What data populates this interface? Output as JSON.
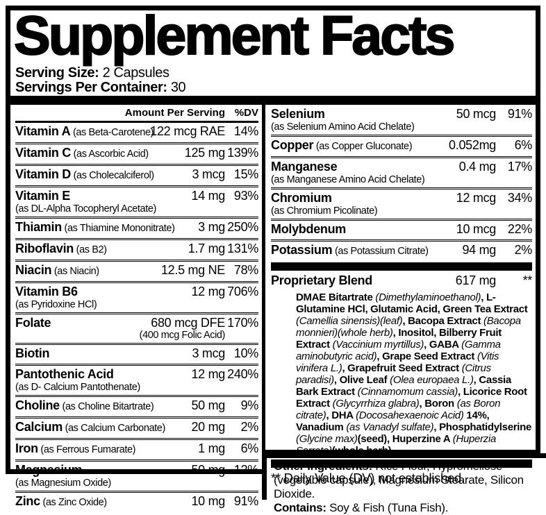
{
  "colors": {
    "ink": "#000000",
    "paper": "#ffffff"
  },
  "title": "Supplement Facts",
  "serving": {
    "size_label": "Serving Size:",
    "size_value": " 2 Capsules",
    "count_label": "Servings Per Container:",
    "count_value": " 30"
  },
  "table": {
    "header": {
      "amount": "Amount Per Serving",
      "dv": "%DV"
    },
    "left_rows": [
      {
        "name": "Vitamin A",
        "form": "(as Beta-Carotene)",
        "amount": "122 mcg RAE",
        "dv": "14%"
      },
      {
        "name": "Vitamin C",
        "form": "(as Ascorbic Acid)",
        "amount": "125 mg",
        "dv": "139%"
      },
      {
        "name": "Vitamin D",
        "form": "(as Cholecalciferol)",
        "amount": "3 mcg",
        "dv": "15%"
      },
      {
        "name": "Vitamin E",
        "sub": "(as DL-Alpha Tocopheryl Acetate)",
        "amount": "14 mg",
        "dv": "93%"
      },
      {
        "name": "Thiamin",
        "form": "(as Thiamine Mononitrate)",
        "amount": "3 mg",
        "dv": "250%"
      },
      {
        "name": "Riboflavin",
        "form": "(as B2)",
        "amount": "1.7 mg",
        "dv": "131%"
      },
      {
        "name": "Niacin",
        "form": "(as Niacin)",
        "amount": "12.5 mg NE",
        "dv": "78%"
      },
      {
        "name": "Vitamin B6",
        "sub": "(as Pyridoxine HCl)",
        "amount": "12 mg",
        "dv": "706%"
      },
      {
        "name": "Folate",
        "amount": "680 mcg DFE",
        "amount_sub": "(400 mcg Folic Acid)",
        "dv": "170%"
      },
      {
        "name": "Biotin",
        "amount": "3 mcg",
        "dv": "10%"
      },
      {
        "name": "Pantothenic Acid",
        "sub": "(as D- Calcium Pantothenate)",
        "amount": "12 mg",
        "dv": "240%"
      },
      {
        "name": "Choline",
        "form": "(as Choline Bitartrate)",
        "amount": "50 mg",
        "dv": "9%"
      },
      {
        "name": "Calcium",
        "form": "(as Calcium Carbonate)",
        "amount": "20 mg",
        "dv": "2%"
      },
      {
        "name": "Iron",
        "form": "(as Ferrous Fumarate)",
        "amount": "1 mg",
        "dv": "6%"
      },
      {
        "name": "Magnesium",
        "sub": "(as Magnesium Oxide)",
        "amount": "50 mg",
        "dv": "12%"
      },
      {
        "name": "Zinc",
        "form": "(as Zinc Oxide)",
        "amount": "10 mg",
        "dv": "91%"
      }
    ],
    "right_rows": [
      {
        "name": "Selenium",
        "sub": "(as Selenium Amino Acid Chelate)",
        "amount": "50 mcg",
        "dv": "91%"
      },
      {
        "name": "Copper",
        "form": "(as Copper Gluconate)",
        "amount": "0.052mg",
        "dv": "6%"
      },
      {
        "name": "Manganese",
        "sub": "(as Manganese Amino Acid Chelate)",
        "amount": "0.4 mg",
        "dv": "17%"
      },
      {
        "name": "Chromium",
        "sub": "(as Chromium Picolinate)",
        "amount": "12 mcg",
        "dv": "34%"
      },
      {
        "name": "Molybdenum",
        "amount": "10 mcg",
        "dv": "22%"
      },
      {
        "name": "Potassium",
        "form": "(as Potassium Citrate)",
        "amount": "94 mg",
        "dv": "2%"
      }
    ],
    "proprietary": {
      "name": "Proprietary Blend",
      "amount": "617 mg",
      "dv": "**",
      "ingredients": [
        {
          "s": "b",
          "t": "DMAE Bitartrate "
        },
        {
          "s": "i",
          "t": "(Dimethylaminoethanol)"
        },
        {
          "s": "b",
          "t": ", L-Glutamine HCl, Glutamic Acid, Green Tea Extract "
        },
        {
          "s": "i",
          "t": "(Camellia sinensis)(leaf)"
        },
        {
          "s": "b",
          "t": ", Bacopa Extract "
        },
        {
          "s": "i",
          "t": "(Bacopa monnieri)(whole herb)"
        },
        {
          "s": "b",
          "t": ", Inositol, Bilberry Fruit Extract "
        },
        {
          "s": "i",
          "t": "(Vaccinium myrtillus)"
        },
        {
          "s": "b",
          "t": ", GABA "
        },
        {
          "s": "i",
          "t": "(Gamma aminobutyric acid)"
        },
        {
          "s": "b",
          "t": ", Grape Seed Extract "
        },
        {
          "s": "i",
          "t": "(Vitis vinifera L.)"
        },
        {
          "s": "b",
          "t": ", Grapefruit Seed Extract "
        },
        {
          "s": "i",
          "t": "(Citrus paradisi)"
        },
        {
          "s": "b",
          "t": ", Olive Leaf "
        },
        {
          "s": "i",
          "t": "(Olea europaea L.)"
        },
        {
          "s": "b",
          "t": ", Cassia Bark Extract "
        },
        {
          "s": "i",
          "t": "(Cinnamomum cassia)"
        },
        {
          "s": "b",
          "t": ", Licorice Root Extract "
        },
        {
          "s": "i",
          "t": "(Glycyrrhiza glabra)"
        },
        {
          "s": "b",
          "t": ", Boron "
        },
        {
          "s": "i",
          "t": "(as Boron citrate)"
        },
        {
          "s": "b",
          "t": ", DHA "
        },
        {
          "s": "i",
          "t": "(Docosahexaenoic Acid)"
        },
        {
          "s": "b",
          "t": " 14%, Vanadium "
        },
        {
          "s": "i",
          "t": "(as Vanadyl sulfate)"
        },
        {
          "s": "b",
          "t": ", Phosphatidylserine "
        },
        {
          "s": "i",
          "t": "(Glycine max)"
        },
        {
          "s": "b",
          "t": "(seed), Huperzine A "
        },
        {
          "s": "i",
          "t": "(Huperzia Serrate)"
        },
        {
          "s": "b",
          "t": "(whole herb)"
        }
      ]
    },
    "footnote": "** Daily Value (DV) not established."
  },
  "other_ingredients": {
    "label": "Other Ingredients:",
    "text": " Rice Flour, Hypromellose (vegetable capsule), Magnesium Stearate, Silicon Dioxide.",
    "contains_label": "Contains:",
    "contains_text": " Soy & Fish (Tuna Fish)."
  }
}
